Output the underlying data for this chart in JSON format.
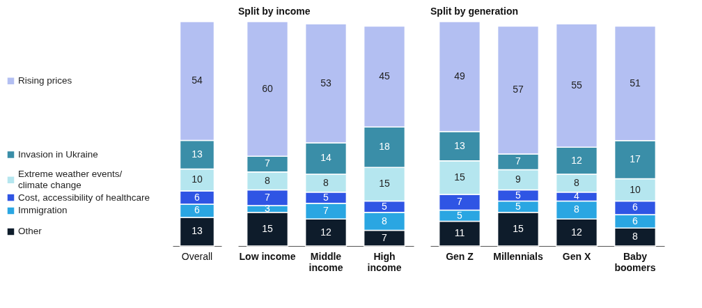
{
  "chart_data": [
    {
      "type": "bar",
      "stacked": true,
      "data_labels": true,
      "legend": "left",
      "categories": [
        "Overall"
      ],
      "series": [
        {
          "name": "Other",
          "color": "#0e1c2b",
          "values": [
            13
          ]
        },
        {
          "name": "Immigration",
          "color": "#2aa6e2",
          "values": [
            6
          ]
        },
        {
          "name": "Cost, accessibility of healthcare",
          "color": "#2f55e4",
          "values": [
            6
          ]
        },
        {
          "name": "Extreme weather events/ climate change",
          "color": "#b5e6ef",
          "values": [
            10
          ]
        },
        {
          "name": "Invasion in Ukraine",
          "color": "#3a8ea8",
          "values": [
            13
          ]
        },
        {
          "name": "Rising prices",
          "color": "#b3bff2",
          "values": [
            54
          ]
        }
      ]
    },
    {
      "type": "bar",
      "stacked": true,
      "data_labels": true,
      "title": "Split by income",
      "categories": [
        "Low income",
        "Middle income",
        "High income"
      ],
      "series": [
        {
          "color": "#0e1c2b",
          "values": [
            15,
            12,
            7
          ]
        },
        {
          "color": "#2aa6e2",
          "values": [
            3,
            7,
            8
          ]
        },
        {
          "color": "#2f55e4",
          "values": [
            7,
            5,
            5
          ]
        },
        {
          "color": "#b5e6ef",
          "values": [
            8,
            8,
            15
          ]
        },
        {
          "color": "#3a8ea8",
          "values": [
            7,
            14,
            18
          ]
        },
        {
          "color": "#b3bff2",
          "values": [
            60,
            53,
            45
          ]
        }
      ]
    },
    {
      "type": "bar",
      "stacked": true,
      "data_labels": true,
      "title": "Split by generation",
      "categories": [
        "Gen Z",
        "Millennials",
        "Gen X",
        "Baby boomers"
      ],
      "series": [
        {
          "color": "#0e1c2b",
          "values": [
            11,
            15,
            12,
            8
          ]
        },
        {
          "color": "#2aa6e2",
          "values": [
            5,
            5,
            8,
            6
          ]
        },
        {
          "color": "#2f55e4",
          "values": [
            7,
            5,
            4,
            6
          ]
        },
        {
          "color": "#b5e6ef",
          "values": [
            15,
            9,
            8,
            10
          ]
        },
        {
          "color": "#3a8ea8",
          "values": [
            13,
            7,
            12,
            17
          ]
        },
        {
          "color": "#b3bff2",
          "values": [
            49,
            57,
            55,
            51
          ]
        }
      ]
    }
  ]
}
